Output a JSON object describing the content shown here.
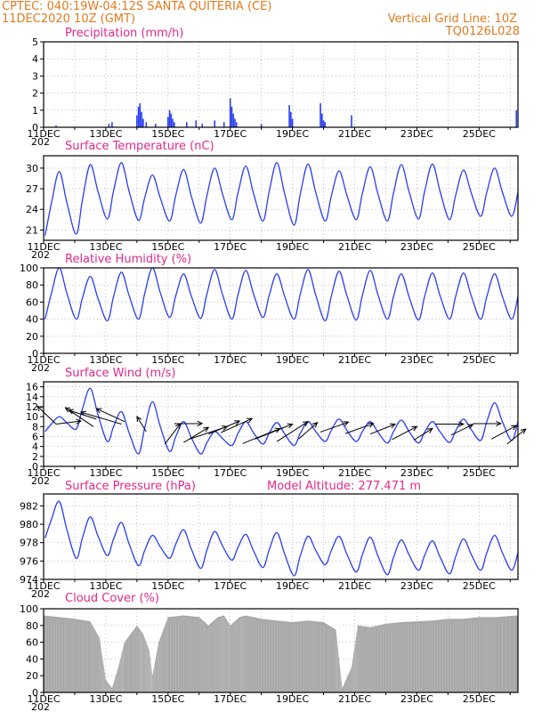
{
  "header": {
    "line1_left": "CPTEC:   040:19W-04:12S   SANTA QUITERIA (CE)",
    "line2_left": "11DEC2020 10Z (GMT)",
    "line1_right": "Vertical Grid Line: 10Z",
    "line2_right": "TQ0126L028"
  },
  "colors": {
    "header": "#e07a1f",
    "title": "#e0298a",
    "line": "#2a3ef0",
    "bar": "#2a3ef0",
    "cloud": "#a8a8a8",
    "grid": "#9a9a9a"
  },
  "x_labels": [
    "11DEC",
    "13DEC",
    "15DEC",
    "17DEC",
    "19DEC",
    "21DEC",
    "23DEC",
    "25DEC"
  ],
  "x_year_fragment": "202",
  "chart_data": [
    {
      "id": "precip",
      "type": "bar",
      "title": "Precipitation (mm/h)",
      "ylim": [
        0,
        5
      ],
      "yticks": [
        0,
        1,
        2,
        3,
        4,
        5
      ],
      "x_range_days": [
        0,
        15.25
      ],
      "values": [
        [
          0.4,
          0.1
        ],
        [
          2.1,
          0.2
        ],
        [
          2.2,
          0.3
        ],
        [
          3.0,
          0.7
        ],
        [
          3.05,
          1.2
        ],
        [
          3.1,
          1.4
        ],
        [
          3.15,
          0.9
        ],
        [
          3.2,
          0.5
        ],
        [
          3.3,
          0.3
        ],
        [
          3.6,
          0.2
        ],
        [
          4.0,
          0.6
        ],
        [
          4.05,
          1.0
        ],
        [
          4.1,
          0.8
        ],
        [
          4.15,
          0.5
        ],
        [
          4.2,
          0.3
        ],
        [
          4.6,
          0.3
        ],
        [
          4.9,
          0.4
        ],
        [
          5.1,
          0.2
        ],
        [
          5.5,
          0.4
        ],
        [
          5.8,
          0.3
        ],
        [
          6.0,
          1.7
        ],
        [
          6.05,
          1.2
        ],
        [
          6.1,
          0.8
        ],
        [
          6.15,
          0.5
        ],
        [
          6.2,
          0.3
        ],
        [
          7.0,
          0.2
        ],
        [
          7.9,
          1.3
        ],
        [
          7.95,
          0.9
        ],
        [
          8.0,
          0.5
        ],
        [
          8.9,
          1.4
        ],
        [
          8.95,
          0.8
        ],
        [
          9.0,
          0.4
        ],
        [
          9.05,
          0.3
        ],
        [
          9.9,
          0.7
        ],
        [
          15.2,
          1.0
        ]
      ]
    },
    {
      "id": "temp",
      "type": "line",
      "title": "Surface Temperature (nC)",
      "ylim": [
        19.5,
        31.8
      ],
      "yticks": [
        21,
        24,
        27,
        30
      ],
      "peaks": [
        29.5,
        30.5,
        30.8,
        29.0,
        29.8,
        30.0,
        30.3,
        30.8,
        30.6,
        29.6,
        30.2,
        30.5,
        30.6,
        29.7,
        30.0
      ],
      "troughs": [
        20.2,
        20.4,
        22.6,
        22.4,
        22.3,
        22.0,
        22.5,
        22.3,
        21.7,
        22.3,
        22.5,
        22.3,
        22.6,
        22.5,
        23.0
      ]
    },
    {
      "id": "rh",
      "type": "line",
      "title": "Relative Humidity (%)",
      "ylim": [
        0,
        100
      ],
      "yticks": [
        0,
        20,
        40,
        60,
        80,
        100
      ],
      "peaks": [
        100,
        90,
        95,
        100,
        93,
        98,
        97,
        93,
        98,
        96,
        97,
        93,
        94,
        94,
        93
      ],
      "troughs": [
        40,
        40,
        38,
        40,
        42,
        41,
        40,
        42,
        40,
        38,
        39,
        40,
        39,
        40,
        40
      ]
    },
    {
      "id": "wind",
      "type": "line",
      "title": "Surface Wind (m/s)",
      "ylim": [
        0,
        17
      ],
      "yticks": [
        0,
        2,
        4,
        6,
        8,
        10,
        12,
        14,
        16
      ],
      "peaks": [
        10,
        15.7,
        11,
        13,
        9,
        7,
        9,
        8.8,
        9,
        9.5,
        9,
        9.3,
        9,
        9.5,
        12.8
      ],
      "troughs": [
        7,
        7.5,
        5,
        2.5,
        3,
        2.5,
        4.2,
        4.5,
        4.2,
        5,
        5,
        4.7,
        4.7,
        4.8,
        5.2
      ],
      "vectors": [
        [
          0.4,
          8.5,
          -0.6,
          3.6
        ],
        [
          0.4,
          8.5,
          0.8,
          0.6
        ],
        [
          1.6,
          8.0,
          -0.9,
          3.8
        ],
        [
          1.7,
          9.5,
          -0.9,
          1.8
        ],
        [
          2.5,
          8.5,
          -1.3,
          2.4
        ],
        [
          2.6,
          9.0,
          -0.9,
          2.6
        ],
        [
          3.3,
          7.0,
          -0.3,
          3.0
        ],
        [
          3.9,
          4.5,
          0.5,
          4.1
        ],
        [
          4.2,
          8.6,
          0.9,
          0
        ],
        [
          4.5,
          4.8,
          0.8,
          3.0
        ],
        [
          4.7,
          5.5,
          1.2,
          2.5
        ],
        [
          5.3,
          6.5,
          1.0,
          2.6
        ],
        [
          5.7,
          6.8,
          1.0,
          2.8
        ],
        [
          6.4,
          4.6,
          1.2,
          3.0
        ],
        [
          6.8,
          5.5,
          1.2,
          3.0
        ],
        [
          7.5,
          5.0,
          1.0,
          4.0
        ],
        [
          8.2,
          5.5,
          0.6,
          3.3
        ],
        [
          8.9,
          6.9,
          0.9,
          2.0
        ],
        [
          9.7,
          6.6,
          0.9,
          2.0
        ],
        [
          10.5,
          6.5,
          0.8,
          2.0
        ],
        [
          11.2,
          5.4,
          0.8,
          2.6
        ],
        [
          11.9,
          5.3,
          0.6,
          2.3
        ],
        [
          12.6,
          8.5,
          0.9,
          0
        ],
        [
          13.1,
          6.3,
          0.7,
          2.1
        ],
        [
          13.8,
          8.6,
          0.9,
          0
        ],
        [
          14.4,
          5.5,
          0.8,
          2.7
        ],
        [
          14.9,
          4.5,
          0.6,
          3.0
        ]
      ]
    },
    {
      "id": "pres",
      "type": "line",
      "title": "Surface Pressure (hPa)",
      "subtitle": "Model Altitude: 277.471 m",
      "ylim": [
        974,
        983.3
      ],
      "yticks": [
        974,
        976,
        978,
        980,
        982
      ],
      "peaks": [
        982.5,
        980.8,
        980.2,
        978.8,
        979.4,
        979.2,
        978.9,
        979.1,
        978.7,
        978.7,
        978.6,
        978.3,
        978.2,
        978.4,
        978.8
      ],
      "troughs": [
        978.5,
        976.3,
        976.6,
        975.5,
        976.3,
        975.2,
        976.1,
        975.3,
        974.4,
        975.6,
        974.8,
        974.5,
        975.0,
        974.6,
        975.0
      ]
    },
    {
      "id": "cloud",
      "type": "area",
      "title": "Cloud Cover (%)",
      "ylim": [
        0,
        100
      ],
      "yticks": [
        0,
        20,
        40,
        60,
        80,
        100
      ],
      "x_range_days": [
        0,
        15.25
      ],
      "points": [
        [
          0,
          92
        ],
        [
          0.5,
          90
        ],
        [
          1.0,
          88
        ],
        [
          1.5,
          85
        ],
        [
          1.8,
          65
        ],
        [
          2.0,
          15
        ],
        [
          2.2,
          5
        ],
        [
          2.4,
          30
        ],
        [
          2.6,
          60
        ],
        [
          3.0,
          80
        ],
        [
          3.2,
          70
        ],
        [
          3.4,
          50
        ],
        [
          3.5,
          20
        ],
        [
          3.7,
          60
        ],
        [
          4.0,
          90
        ],
        [
          4.5,
          92
        ],
        [
          5.0,
          90
        ],
        [
          5.3,
          80
        ],
        [
          5.6,
          90
        ],
        [
          5.8,
          92
        ],
        [
          6.0,
          80
        ],
        [
          6.3,
          90
        ],
        [
          6.5,
          92
        ],
        [
          7.0,
          88
        ],
        [
          7.5,
          86
        ],
        [
          8.0,
          84
        ],
        [
          8.5,
          86
        ],
        [
          9.0,
          84
        ],
        [
          9.4,
          75
        ],
        [
          9.6,
          5
        ],
        [
          9.9,
          30
        ],
        [
          10.1,
          80
        ],
        [
          10.5,
          78
        ],
        [
          11.0,
          82
        ],
        [
          11.5,
          84
        ],
        [
          12.0,
          85
        ],
        [
          12.5,
          86
        ],
        [
          13.0,
          88
        ],
        [
          13.5,
          88
        ],
        [
          14.0,
          90
        ],
        [
          14.5,
          90
        ],
        [
          15.25,
          92
        ]
      ]
    }
  ]
}
